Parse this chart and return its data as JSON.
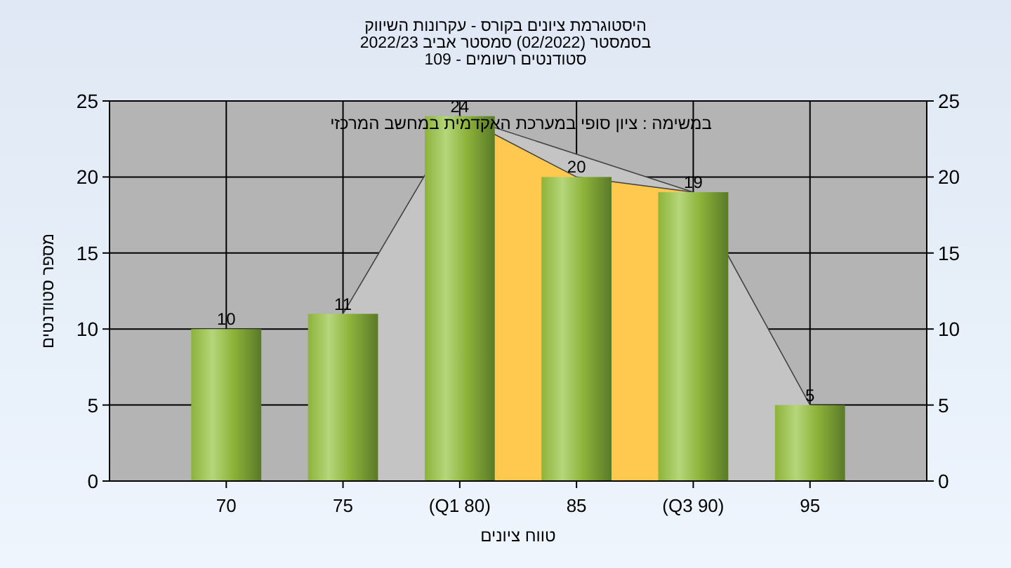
{
  "chart_data": {
    "type": "bar",
    "title": "היסטוגרמת ציונים בקורס - עקרונות השיווק",
    "subtitle": "בסמסטר  (02/2022)  סמסטר אביב 2022/23\nסטודנטים רשומים - 109",
    "xlabel": "טווח ציונים",
    "ylabel": "מספר סטודנטים",
    "annotations": [
      "במשימה : ציון סופי במערכת האקדמית במחשב המרכזי"
    ],
    "x": [
      70,
      75,
      80,
      85,
      90,
      95
    ],
    "series": [
      {
        "type": "area",
        "color": "#c4c4c4",
        "x": [
          75,
          80,
          90,
          95
        ],
        "values": [
          11,
          24,
          19,
          5
        ]
      },
      {
        "type": "area",
        "color": "#ffc94f",
        "x": [
          80,
          85,
          90
        ],
        "values": [
          24,
          20,
          19
        ]
      },
      {
        "color": "#8db33a",
        "values": [
          10,
          11,
          24,
          20,
          19,
          5
        ],
        "value_labels": [
          "10",
          "11",
          "24",
          "20",
          "19",
          "5"
        ]
      }
    ],
    "grid": true,
    "xlim": [
      65,
      100
    ],
    "xticks": [
      70,
      75,
      {
        "value": 80,
        "label": "(Q1 80)"
      },
      85,
      {
        "value": 90,
        "label": "(Q3 90)"
      },
      95
    ],
    "ylim": [
      0,
      25
    ],
    "yticks": [
      0,
      5,
      10,
      15,
      20,
      25
    ],
    "y2lim": [
      0,
      25
    ],
    "y2ticks": [
      0,
      5,
      10,
      15,
      20,
      25
    ]
  }
}
